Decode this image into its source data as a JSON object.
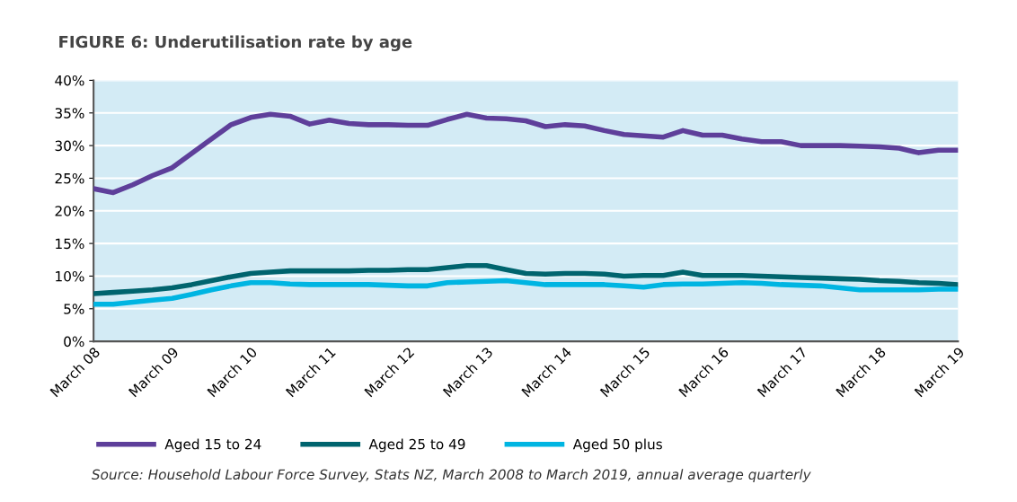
{
  "chart_data": {
    "type": "line",
    "title": "FIGURE 6: Underutilisation rate by age",
    "categories": [
      "March 08",
      null,
      null,
      null,
      "March 09",
      null,
      null,
      null,
      "March 10",
      null,
      null,
      null,
      "March 11",
      null,
      null,
      null,
      "March 12",
      null,
      null,
      null,
      "March 13",
      null,
      null,
      null,
      "March 14",
      null,
      null,
      null,
      "March 15",
      null,
      null,
      null,
      "March 16",
      null,
      null,
      null,
      "March 17",
      null,
      null,
      null,
      "March 18",
      null,
      null,
      null,
      "March 19"
    ],
    "series": [
      {
        "name": "Aged 15 to 24",
        "color": "#5e3f9a",
        "values": [
          23.4,
          22.8,
          24.0,
          25.4,
          26.6,
          28.8,
          31.0,
          33.2,
          34.3,
          34.8,
          34.5,
          33.3,
          33.9,
          33.4,
          33.2,
          33.2,
          33.1,
          33.1,
          34.0,
          34.8,
          34.2,
          34.1,
          33.8,
          32.9,
          33.2,
          33.0,
          32.3,
          31.7,
          31.5,
          31.3,
          32.3,
          31.6,
          31.6,
          31.0,
          30.6,
          30.6,
          30.0,
          30.0,
          30.0,
          29.9,
          29.8,
          29.6,
          28.9,
          29.3,
          29.3
        ]
      },
      {
        "name": "Aged 25 to 49",
        "color": "#00646e",
        "values": [
          7.3,
          7.5,
          7.7,
          7.9,
          8.2,
          8.7,
          9.3,
          9.9,
          10.4,
          10.6,
          10.8,
          10.8,
          10.8,
          10.8,
          10.9,
          10.9,
          11.0,
          11.0,
          11.3,
          11.6,
          11.6,
          11.0,
          10.4,
          10.3,
          10.4,
          10.4,
          10.3,
          10.0,
          10.1,
          10.1,
          10.6,
          10.1,
          10.1,
          10.1,
          10.0,
          9.9,
          9.8,
          9.7,
          9.6,
          9.5,
          9.3,
          9.2,
          9.0,
          8.9,
          8.7
        ]
      },
      {
        "name": "Aged 50 plus",
        "color": "#00b5e2",
        "values": [
          5.7,
          5.7,
          6.0,
          6.3,
          6.6,
          7.2,
          7.9,
          8.5,
          9.0,
          9.0,
          8.8,
          8.7,
          8.7,
          8.7,
          8.7,
          8.6,
          8.5,
          8.5,
          9.0,
          9.1,
          9.2,
          9.3,
          9.0,
          8.7,
          8.7,
          8.7,
          8.7,
          8.5,
          8.3,
          8.7,
          8.8,
          8.8,
          8.9,
          9.0,
          8.9,
          8.7,
          8.6,
          8.5,
          8.2,
          7.9,
          7.9,
          7.9,
          7.9,
          8.0,
          8.0
        ]
      }
    ],
    "ylim": [
      0,
      40
    ],
    "yticks": [
      {
        "value": 0,
        "label": "0%"
      },
      {
        "value": 5,
        "label": "5%"
      },
      {
        "value": 10,
        "label": "10%"
      },
      {
        "value": 15,
        "label": "15%"
      },
      {
        "value": 20,
        "label": "20%"
      },
      {
        "value": 25,
        "label": "25%"
      },
      {
        "value": 30,
        "label": "30%"
      },
      {
        "value": 35,
        "label": "35%"
      },
      {
        "value": 40,
        "label": "40%"
      }
    ],
    "grid": "y",
    "legend": "bottom",
    "marker": "none",
    "line_style": "solid",
    "annotations": [
      "Source: Household Labour Force Survey, Stats NZ, March 2008 to March 2019, annual average quarterly"
    ]
  }
}
